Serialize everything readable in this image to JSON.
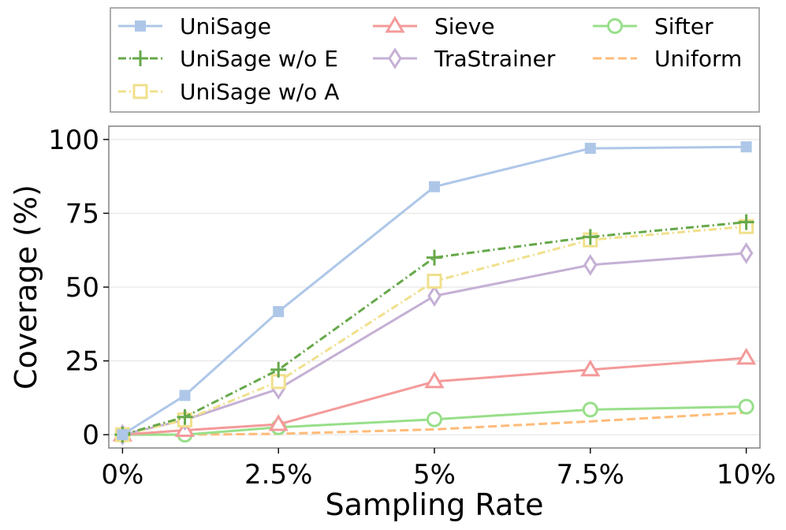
{
  "chart_data": {
    "type": "line",
    "title": "",
    "xlabel": "Sampling Rate",
    "ylabel": "Coverage (%)",
    "x": [
      0,
      1,
      2.5,
      5,
      7.5,
      10
    ],
    "xticks": [
      0,
      2.5,
      5,
      7.5,
      10
    ],
    "xtick_labels": [
      "0%",
      "2.5%",
      "5%",
      "7.5%",
      "10%"
    ],
    "yticks": [
      0,
      25,
      50,
      75,
      100
    ],
    "ytick_labels": [
      "0",
      "25",
      "50",
      "75",
      "100"
    ],
    "xlim": [
      -0.22,
      10.22
    ],
    "ylim": [
      -4.5,
      104.5
    ],
    "grid": "horizontal",
    "legend_position": "top, outside plot, 3 columns",
    "series": [
      {
        "name": "UniSage",
        "values": [
          0,
          13.3,
          41.7,
          84,
          97,
          97.5
        ],
        "color": "#aec7e8",
        "dash": "solid",
        "marker": "square-filled"
      },
      {
        "name": "UniSage w/o E",
        "values": [
          0,
          6,
          22,
          60,
          67,
          72
        ],
        "color": "#66a84a",
        "dash": "dashdot",
        "marker": "plus"
      },
      {
        "name": "UniSage w/o A",
        "values": [
          0,
          5,
          18,
          52,
          66,
          70.5
        ],
        "color": "#f0e08c",
        "dash": "dashdot",
        "marker": "square-open"
      },
      {
        "name": "Sieve",
        "values": [
          0,
          1.5,
          3.5,
          18,
          22,
          26
        ],
        "color": "#f49a9a",
        "dash": "solid",
        "marker": "triangle-open"
      },
      {
        "name": "TraStrainer",
        "values": [
          0,
          5,
          15.5,
          47,
          57.5,
          61.5
        ],
        "color": "#c5b0d5",
        "dash": "solid",
        "marker": "diamond-open"
      },
      {
        "name": "Sifter",
        "values": [
          0,
          0,
          2.5,
          5.2,
          8.5,
          9.5
        ],
        "color": "#98df8a",
        "dash": "solid",
        "marker": "circle-open"
      },
      {
        "name": "Uniform",
        "values": [
          0,
          0,
          0.3,
          1.8,
          4.5,
          7.5
        ],
        "color": "#ffbb78",
        "dash": "dashed",
        "marker": "none"
      }
    ]
  }
}
